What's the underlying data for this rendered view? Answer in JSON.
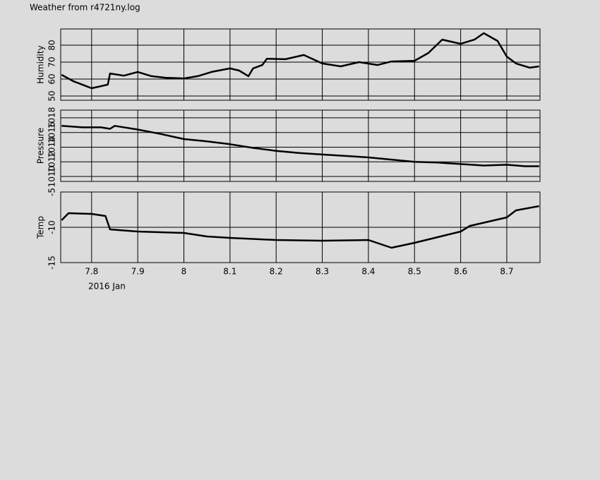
{
  "title": "Weather from r4721ny.log",
  "chart_data": [
    {
      "type": "line",
      "ylabel": "Humidity",
      "xlim": [
        7.733,
        8.772
      ],
      "xticks": [
        7.8,
        7.9,
        8,
        8.1,
        8.2,
        8.3,
        8.4,
        8.5,
        8.6,
        8.7
      ],
      "ylim": [
        47.5,
        89.6
      ],
      "yticks": [
        50,
        60,
        70,
        80
      ],
      "grid": true,
      "x": [
        7.735,
        7.76,
        7.78,
        7.8,
        7.82,
        7.835,
        7.84,
        7.87,
        7.9,
        7.93,
        7.96,
        8.0,
        8.03,
        8.06,
        8.1,
        8.12,
        8.14,
        8.15,
        8.17,
        8.18,
        8.22,
        8.26,
        8.3,
        8.34,
        8.38,
        8.42,
        8.45,
        8.5,
        8.53,
        8.56,
        8.6,
        8.63,
        8.65,
        8.68,
        8.7,
        8.72,
        8.75,
        8.77
      ],
      "series": [
        {
          "color": "#000000",
          "values": [
            62.5,
            58.8,
            56.7,
            54.6,
            55.8,
            56.7,
            63.3,
            62,
            64.2,
            61.7,
            60.8,
            60.4,
            61.7,
            64.2,
            66.3,
            65,
            61.7,
            66.3,
            68.3,
            72,
            71.7,
            74.2,
            69.2,
            67.5,
            70,
            68.3,
            70.4,
            70.8,
            75.4,
            83.3,
            80.8,
            83.3,
            87.1,
            82.5,
            73.3,
            69.2,
            66.7,
            67.5
          ]
        }
      ]
    },
    {
      "type": "line",
      "ylabel": "Pressure",
      "xlim": [
        7.733,
        8.772
      ],
      "xticks": [
        7.8,
        7.9,
        8,
        8.1,
        8.2,
        8.3,
        8.4,
        8.5,
        8.6,
        8.7
      ],
      "ylim": [
        1009.33,
        1019.05
      ],
      "yticks": [
        1010,
        1012,
        1014,
        1016,
        1018
      ],
      "grid": true,
      "x": [
        7.735,
        7.78,
        7.82,
        7.84,
        7.85,
        7.9,
        7.95,
        8.0,
        8.05,
        8.1,
        8.15,
        8.2,
        8.25,
        8.3,
        8.35,
        8.4,
        8.45,
        8.5,
        8.55,
        8.6,
        8.65,
        8.7,
        8.74,
        8.77
      ],
      "series": [
        {
          "color": "#000000",
          "values": [
            1016.9,
            1016.7,
            1016.7,
            1016.5,
            1016.9,
            1016.4,
            1015.8,
            1015.1,
            1014.8,
            1014.4,
            1013.9,
            1013.5,
            1013.2,
            1013.0,
            1012.8,
            1012.6,
            1012.3,
            1012.0,
            1011.9,
            1011.7,
            1011.5,
            1011.6,
            1011.4,
            1011.4
          ]
        }
      ]
    },
    {
      "type": "line",
      "ylabel": "Temp",
      "xlabel": "2016 Jan",
      "xlim": [
        7.733,
        8.772
      ],
      "xticks": [
        7.8,
        7.9,
        8,
        8.1,
        8.2,
        8.3,
        8.4,
        8.5,
        8.6,
        8.7
      ],
      "ylim": [
        -15,
        -5
      ],
      "yticks": [
        -15,
        -10,
        -5
      ],
      "grid": true,
      "x": [
        7.735,
        7.75,
        7.8,
        7.83,
        7.84,
        7.9,
        8.0,
        8.05,
        8.1,
        8.2,
        8.3,
        8.4,
        8.45,
        8.5,
        8.55,
        8.6,
        8.62,
        8.7,
        8.72,
        8.77
      ],
      "series": [
        {
          "color": "#000000",
          "values": [
            -9,
            -8,
            -8.1,
            -8.4,
            -10.3,
            -10.6,
            -10.8,
            -11.3,
            -11.5,
            -11.8,
            -11.9,
            -11.8,
            -12.9,
            -12.2,
            -11.4,
            -10.6,
            -9.8,
            -8.6,
            -7.6,
            -7.0
          ]
        }
      ]
    }
  ]
}
